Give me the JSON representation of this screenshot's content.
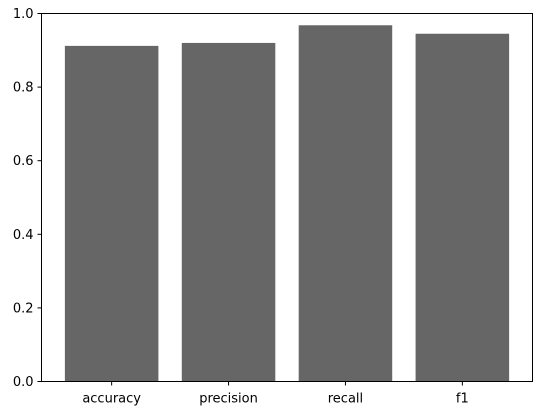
{
  "chart_data": {
    "type": "bar",
    "categories": [
      "accuracy",
      "precision",
      "recall",
      "f1"
    ],
    "values": [
      0.912,
      0.92,
      0.968,
      0.945
    ],
    "title": "",
    "xlabel": "",
    "ylabel": "",
    "ylim": [
      0,
      1.0
    ],
    "yticks": [
      0.0,
      0.2,
      0.4,
      0.6,
      0.8,
      1.0
    ],
    "ytick_labels": [
      "0.0",
      "0.2",
      "0.4",
      "0.6",
      "0.8",
      "1.0"
    ],
    "grid": false,
    "bar_color": "#666666"
  }
}
